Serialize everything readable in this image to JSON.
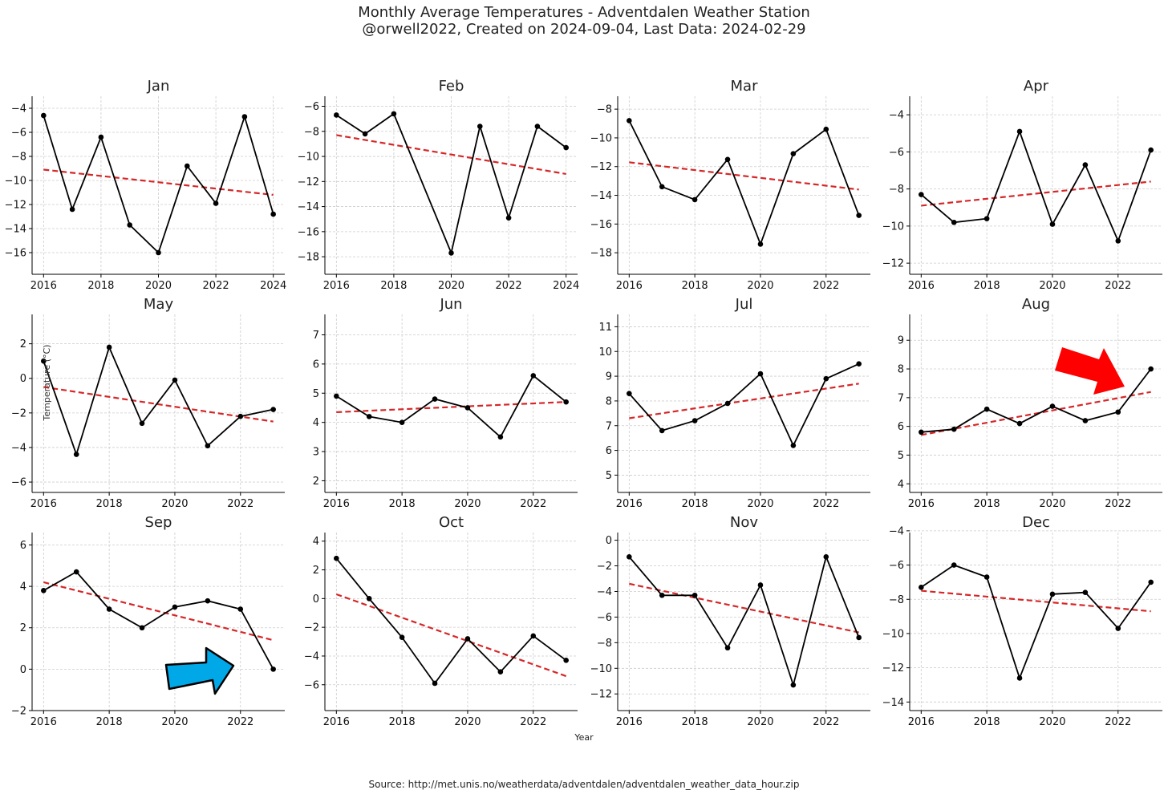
{
  "title": "Monthly Average Temperatures - Adventdalen Weather Station",
  "subtitle": "@orwell2022, Created on 2024-09-04, Last Data: 2024-02-29",
  "xlabel": "Year",
  "ylabel": "Temperature (°C)",
  "source": "Source: http://met.unis.no/weatherdata/adventdalen/adventdalen_weather_data_hour.zip",
  "colors": {
    "data_line": "#000000",
    "trend_line": "#d62728",
    "grid": "#cccccc",
    "red_arrow": "#ff0000",
    "blue_arrow": "#00a8e8"
  },
  "chart_data": [
    {
      "type": "line",
      "title": "Jan",
      "x": [
        2016,
        2017,
        2018,
        2019,
        2020,
        2021,
        2022,
        2023,
        2024
      ],
      "y": [
        -4.6,
        -12.4,
        -6.4,
        -13.7,
        -16.0,
        -8.8,
        -11.9,
        -4.7,
        -12.8
      ],
      "trend": [
        [
          2016,
          -9.1
        ],
        [
          2024,
          -11.2
        ]
      ],
      "xlim": [
        2015.6,
        2024.4
      ],
      "ylim": [
        -17.8,
        -3.0
      ],
      "xticks": [
        2016,
        2018,
        2020,
        2022,
        2024
      ],
      "yticks": [
        -16,
        -14,
        -12,
        -10,
        -8,
        -6,
        -4
      ],
      "grid": true
    },
    {
      "type": "line",
      "title": "Feb",
      "x": [
        2016,
        2017,
        2018,
        2020,
        2021,
        2022,
        2023,
        2024
      ],
      "y": [
        -6.7,
        -8.2,
        -6.6,
        -17.7,
        -7.6,
        -14.9,
        -7.6,
        -9.3
      ],
      "trend": [
        [
          2016,
          -8.3
        ],
        [
          2024,
          -11.4
        ]
      ],
      "xlim": [
        2015.6,
        2024.4
      ],
      "ylim": [
        -19.4,
        -5.2
      ],
      "xticks": [
        2016,
        2018,
        2020,
        2022,
        2024
      ],
      "yticks": [
        -18,
        -16,
        -14,
        -12,
        -10,
        -8,
        -6
      ],
      "grid": true
    },
    {
      "type": "line",
      "title": "Mar",
      "x": [
        2016,
        2017,
        2018,
        2019,
        2020,
        2021,
        2022,
        2023
      ],
      "y": [
        -8.8,
        -13.4,
        -14.3,
        -11.5,
        -17.4,
        -11.1,
        -9.4,
        -15.4
      ],
      "trend": [
        [
          2016,
          -11.7
        ],
        [
          2023,
          -13.6
        ]
      ],
      "xlim": [
        2015.65,
        2023.35
      ],
      "ylim": [
        -19.5,
        -7.1
      ],
      "xticks": [
        2016,
        2018,
        2020,
        2022
      ],
      "yticks": [
        -18,
        -16,
        -14,
        -12,
        -10,
        -8
      ],
      "grid": true
    },
    {
      "type": "line",
      "title": "Apr",
      "x": [
        2016,
        2017,
        2018,
        2019,
        2020,
        2021,
        2022,
        2023
      ],
      "y": [
        -8.3,
        -9.8,
        -9.6,
        -4.9,
        -9.9,
        -6.7,
        -10.8,
        -5.9
      ],
      "trend": [
        [
          2016,
          -8.9
        ],
        [
          2023,
          -7.6
        ]
      ],
      "xlim": [
        2015.65,
        2023.35
      ],
      "ylim": [
        -12.6,
        -3.0
      ],
      "xticks": [
        2016,
        2018,
        2020,
        2022
      ],
      "yticks": [
        -12,
        -10,
        -8,
        -6,
        -4
      ],
      "grid": true
    },
    {
      "type": "line",
      "title": "May",
      "x": [
        2016,
        2017,
        2018,
        2019,
        2020,
        2021,
        2022,
        2023
      ],
      "y": [
        1.0,
        -4.4,
        1.8,
        -2.6,
        -0.1,
        -3.9,
        -2.2,
        -1.8
      ],
      "trend": [
        [
          2016,
          -0.5
        ],
        [
          2023,
          -2.5
        ]
      ],
      "xlim": [
        2015.65,
        2023.35
      ],
      "ylim": [
        -6.6,
        3.7
      ],
      "xticks": [
        2016,
        2018,
        2020,
        2022
      ],
      "yticks": [
        -6,
        -4,
        -2,
        0,
        2
      ],
      "grid": true
    },
    {
      "type": "line",
      "title": "Jun",
      "x": [
        2016,
        2017,
        2018,
        2019,
        2020,
        2021,
        2022,
        2023
      ],
      "y": [
        4.9,
        4.2,
        4.0,
        4.8,
        4.5,
        3.5,
        5.6,
        4.7
      ],
      "trend": [
        [
          2016,
          4.35
        ],
        [
          2023,
          4.7
        ]
      ],
      "xlim": [
        2015.65,
        2023.35
      ],
      "ylim": [
        1.6,
        7.7
      ],
      "xticks": [
        2016,
        2018,
        2020,
        2022
      ],
      "yticks": [
        2,
        3,
        4,
        5,
        6,
        7
      ],
      "grid": true
    },
    {
      "type": "line",
      "title": "Jul",
      "x": [
        2016,
        2017,
        2018,
        2019,
        2020,
        2021,
        2022,
        2023
      ],
      "y": [
        8.3,
        6.8,
        7.2,
        7.9,
        9.1,
        6.2,
        8.9,
        9.5
      ],
      "trend": [
        [
          2016,
          7.3
        ],
        [
          2023,
          8.7
        ]
      ],
      "xlim": [
        2015.65,
        2023.35
      ],
      "ylim": [
        4.3,
        11.5
      ],
      "xticks": [
        2016,
        2018,
        2020,
        2022
      ],
      "yticks": [
        5,
        6,
        7,
        8,
        9,
        10,
        11
      ],
      "grid": true
    },
    {
      "type": "line",
      "title": "Aug",
      "x": [
        2016,
        2017,
        2018,
        2019,
        2020,
        2021,
        2022,
        2023
      ],
      "y": [
        5.8,
        5.9,
        6.6,
        6.1,
        6.7,
        6.2,
        6.5,
        8.0
      ],
      "trend": [
        [
          2016,
          5.7
        ],
        [
          2023,
          7.2
        ]
      ],
      "xlim": [
        2015.65,
        2023.35
      ],
      "ylim": [
        3.7,
        9.9
      ],
      "xticks": [
        2016,
        2018,
        2020,
        2022
      ],
      "yticks": [
        4,
        5,
        6,
        7,
        8,
        9
      ],
      "grid": true
    },
    {
      "type": "line",
      "title": "Sep",
      "x": [
        2016,
        2017,
        2018,
        2019,
        2020,
        2021,
        2022,
        2023
      ],
      "y": [
        3.8,
        4.7,
        2.9,
        2.0,
        3.0,
        3.3,
        2.9,
        0.0
      ],
      "trend": [
        [
          2016,
          4.2
        ],
        [
          2023,
          1.4
        ]
      ],
      "xlim": [
        2015.65,
        2023.35
      ],
      "ylim": [
        -2.0,
        6.6
      ],
      "xticks": [
        2016,
        2018,
        2020,
        2022
      ],
      "yticks": [
        -2,
        0,
        2,
        4,
        6
      ],
      "grid": true
    },
    {
      "type": "line",
      "title": "Oct",
      "x": [
        2016,
        2017,
        2018,
        2019,
        2020,
        2021,
        2022,
        2023
      ],
      "y": [
        2.8,
        0.0,
        -2.7,
        -5.9,
        -2.8,
        -5.1,
        -2.6,
        -4.3
      ],
      "trend": [
        [
          2016,
          0.3
        ],
        [
          2023,
          -5.4
        ]
      ],
      "xlim": [
        2015.65,
        2023.35
      ],
      "ylim": [
        -7.8,
        4.6
      ],
      "xticks": [
        2016,
        2018,
        2020,
        2022
      ],
      "yticks": [
        -6,
        -4,
        -2,
        0,
        2,
        4
      ],
      "grid": true
    },
    {
      "type": "line",
      "title": "Nov",
      "x": [
        2016,
        2017,
        2018,
        2019,
        2020,
        2021,
        2022,
        2023
      ],
      "y": [
        -1.3,
        -4.3,
        -4.3,
        -8.4,
        -3.5,
        -11.3,
        -1.3,
        -7.6
      ],
      "trend": [
        [
          2016,
          -3.4
        ],
        [
          2023,
          -7.2
        ]
      ],
      "xlim": [
        2015.65,
        2023.35
      ],
      "ylim": [
        -13.3,
        0.6
      ],
      "xticks": [
        2016,
        2018,
        2020,
        2022
      ],
      "yticks": [
        -12,
        -10,
        -8,
        -6,
        -4,
        -2,
        0
      ],
      "grid": true
    },
    {
      "type": "line",
      "title": "Dec",
      "x": [
        2016,
        2017,
        2018,
        2019,
        2020,
        2021,
        2022,
        2023
      ],
      "y": [
        -7.3,
        -6.0,
        -6.7,
        -12.6,
        -7.7,
        -7.6,
        -9.7,
        -7.0
      ],
      "trend": [
        [
          2016,
          -7.5
        ],
        [
          2023,
          -8.7
        ]
      ],
      "xlim": [
        2015.65,
        2023.35
      ],
      "ylim": [
        -14.5,
        -4.1
      ],
      "xticks": [
        2016,
        2018,
        2020,
        2022
      ],
      "yticks": [
        -14,
        -12,
        -10,
        -8,
        -6,
        -4
      ],
      "grid": true
    }
  ]
}
